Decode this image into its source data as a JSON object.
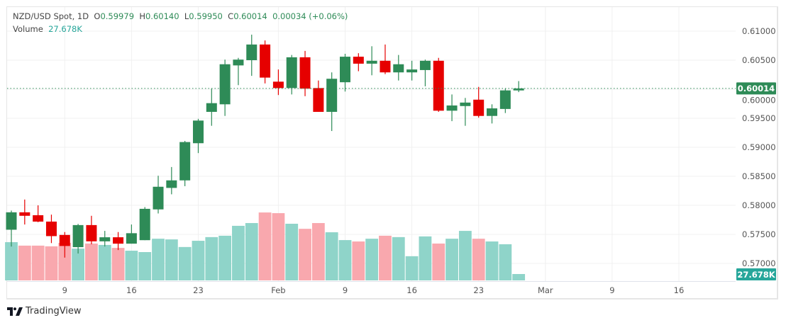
{
  "header": {
    "symbol": "NZD/USD Spot, 1D",
    "open_label": "O",
    "open": "0.59979",
    "high_label": "H",
    "high": "0.60140",
    "low_label": "L",
    "low": "0.59950",
    "close_label": "C",
    "close": "0.60014",
    "change": "0.00034 (+0.06%)",
    "volume_label": "Volume",
    "volume": "27.678K"
  },
  "branding": {
    "name": "TradingView"
  },
  "colors": {
    "up": "#2e8b57",
    "down": "#e60000",
    "vol_up": "#8fd4c9",
    "vol_down": "#f9a8ae",
    "price_badge": "#2e8b57",
    "volume_badge": "#26a69a"
  },
  "chart_data": {
    "type": "candlestick",
    "price_axis": {
      "ticks": [
        "0.61000",
        "0.60500",
        "0.60000",
        "0.59500",
        "0.59000",
        "0.58500",
        "0.58000",
        "0.57500",
        "0.57000"
      ],
      "ylim": [
        0.5676,
        0.6117
      ],
      "last_price_label": "0.60014",
      "last_price": 0.60014
    },
    "volume_axis": {
      "last_volume_label": "27.678K",
      "unit": "K"
    },
    "x_ticks": [
      "9",
      "16",
      "23",
      "Feb",
      "9",
      "16",
      "23",
      "Mar",
      "9",
      "16"
    ],
    "grid": true,
    "dates": [
      "Jan 5",
      "Jan 6",
      "Jan 7",
      "Jan 8",
      "Jan 9",
      "Jan 12",
      "Jan 13",
      "Jan 14",
      "Jan 15",
      "Jan 16",
      "Jan 19",
      "Jan 20",
      "Jan 21",
      "Jan 22",
      "Jan 23",
      "Jan 26",
      "Jan 27",
      "Jan 28",
      "Jan 29",
      "Jan 30",
      "Feb 2",
      "Feb 3",
      "Feb 4",
      "Feb 5",
      "Feb 6",
      "Feb 9",
      "Feb 10",
      "Feb 11",
      "Feb 12",
      "Feb 13",
      "Feb 16",
      "Feb 17",
      "Feb 18",
      "Feb 19",
      "Feb 20",
      "Feb 23",
      "Feb 24",
      "Feb 25",
      "Feb 26"
    ],
    "ohlc": [
      [
        0.5758,
        0.5791,
        0.5729,
        0.5788
      ],
      [
        0.5788,
        0.581,
        0.5767,
        0.5782
      ],
      [
        0.5783,
        0.58,
        0.5771,
        0.5772
      ],
      [
        0.5772,
        0.5784,
        0.5735,
        0.5747
      ],
      [
        0.5749,
        0.5754,
        0.571,
        0.573
      ],
      [
        0.5728,
        0.5768,
        0.5717,
        0.5766
      ],
      [
        0.5766,
        0.5782,
        0.5733,
        0.5738
      ],
      [
        0.5738,
        0.5756,
        0.5729,
        0.5745
      ],
      [
        0.5745,
        0.5754,
        0.5723,
        0.5734
      ],
      [
        0.5734,
        0.5767,
        0.5734,
        0.5752
      ],
      [
        0.574,
        0.5797,
        0.574,
        0.5794
      ],
      [
        0.5793,
        0.5851,
        0.5786,
        0.5832
      ],
      [
        0.583,
        0.5866,
        0.5819,
        0.5843
      ],
      [
        0.5843,
        0.5911,
        0.5833,
        0.5909
      ],
      [
        0.5907,
        0.5949,
        0.589,
        0.5946
      ],
      [
        0.5961,
        0.6001,
        0.5937,
        0.5976
      ],
      [
        0.5974,
        0.6051,
        0.5954,
        0.6043
      ],
      [
        0.6041,
        0.6054,
        0.6007,
        0.6051
      ],
      [
        0.605,
        0.6094,
        0.6023,
        0.6077
      ],
      [
        0.6077,
        0.6084,
        0.601,
        0.602
      ],
      [
        0.6013,
        0.6034,
        0.599,
        0.6002
      ],
      [
        0.6002,
        0.6059,
        0.5991,
        0.6055
      ],
      [
        0.6055,
        0.6066,
        0.5988,
        0.6001
      ],
      [
        0.6002,
        0.6015,
        0.5961,
        0.5961
      ],
      [
        0.5961,
        0.6029,
        0.5928,
        0.6018
      ],
      [
        0.6012,
        0.6061,
        0.5996,
        0.6056
      ],
      [
        0.6056,
        0.6062,
        0.6031,
        0.6044
      ],
      [
        0.6044,
        0.6074,
        0.6024,
        0.6049
      ],
      [
        0.6049,
        0.6077,
        0.6026,
        0.6029
      ],
      [
        0.6029,
        0.6059,
        0.6015,
        0.6043
      ],
      [
        0.6029,
        0.6049,
        0.6015,
        0.6034
      ],
      [
        0.6033,
        0.6051,
        0.6005,
        0.6049
      ],
      [
        0.6049,
        0.6054,
        0.5961,
        0.5963
      ],
      [
        0.5963,
        0.5991,
        0.5945,
        0.5972
      ],
      [
        0.5971,
        0.5985,
        0.5937,
        0.5977
      ],
      [
        0.5982,
        0.6004,
        0.5951,
        0.5954
      ],
      [
        0.5954,
        0.5974,
        0.5941,
        0.5967
      ],
      [
        0.5966,
        0.6001,
        0.5959,
        0.5998
      ],
      [
        0.59979,
        0.6014,
        0.5995,
        0.60014
      ]
    ],
    "volume_k": [
      166,
      151,
      151,
      148,
      163,
      138,
      160,
      154,
      141,
      129,
      123,
      181,
      178,
      145,
      172,
      188,
      194,
      237,
      249,
      295,
      292,
      246,
      224,
      249,
      209,
      175,
      169,
      181,
      194,
      188,
      105,
      191,
      160,
      181,
      215,
      181,
      169,
      157,
      27.678
    ]
  }
}
